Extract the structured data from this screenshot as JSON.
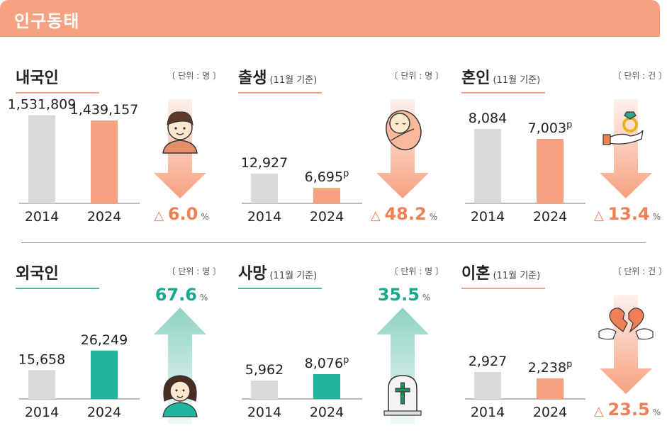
{
  "header": {
    "title": "인구동태"
  },
  "colors": {
    "header_bg": "#f6a17f",
    "bar_2014": "#d9d9d9",
    "bar_orange": "#f6a17f",
    "bar_teal": "#1fb59c",
    "pct_orange": "#ef7f55",
    "pct_teal": "#1aa98f",
    "underline_orange": "#f6a17f",
    "underline_teal": "#34c2a5",
    "arrow_orange": "#f6a17f",
    "arrow_teal": "#8fd3c3"
  },
  "panels": [
    {
      "id": "domestic",
      "title": "내국인",
      "subtitle": "",
      "unit": "〔 단위 : 명 〕",
      "accent": "orange",
      "direction": "down",
      "pct_prefix": "△",
      "pct_value": "6.0",
      "pct_suffix": "%",
      "icon": "person-icon"
    },
    {
      "id": "births",
      "title": "출생",
      "subtitle": "(11월 기준)",
      "unit": "〔 단위 : 명 〕",
      "accent": "orange",
      "direction": "down",
      "pct_prefix": "△",
      "pct_value": "48.2",
      "pct_suffix": "%",
      "icon": "baby-icon"
    },
    {
      "id": "marriages",
      "title": "혼인",
      "subtitle": "(11월 기준)",
      "unit": "〔 단위 : 건 〕",
      "accent": "orange",
      "direction": "down",
      "pct_prefix": "△",
      "pct_value": "13.4",
      "pct_suffix": "%",
      "icon": "ring-icon"
    },
    {
      "id": "foreigners",
      "title": "외국인",
      "subtitle": "",
      "unit": "〔 단위 : 명 〕",
      "accent": "teal",
      "direction": "up",
      "pct_prefix": "",
      "pct_value": "67.6",
      "pct_suffix": "%",
      "icon": "woman-icon"
    },
    {
      "id": "deaths",
      "title": "사망",
      "subtitle": "(11월 기준)",
      "unit": "〔 단위 : 명 〕",
      "accent": "teal",
      "direction": "up",
      "pct_prefix": "",
      "pct_value": "35.5",
      "pct_suffix": "%",
      "icon": "tombstone-icon"
    },
    {
      "id": "divorces",
      "title": "이혼",
      "subtitle": "(11월 기준)",
      "unit": "〔 단위 : 건 〕",
      "accent": "orange",
      "direction": "down",
      "pct_prefix": "△",
      "pct_value": "23.5",
      "pct_suffix": "%",
      "icon": "broken-heart-icon"
    }
  ],
  "chart_data": [
    {
      "type": "bar",
      "title": "내국인",
      "unit": "명",
      "categories": [
        "2014",
        "2024"
      ],
      "values": [
        1531809,
        1439157
      ],
      "value_labels": [
        "1,531,809",
        "1,439,157"
      ],
      "provisional": [
        false,
        false
      ],
      "ylim": [
        0,
        1600000
      ]
    },
    {
      "type": "bar",
      "title": "출생",
      "subtitle": "(11월 기준)",
      "unit": "명",
      "categories": [
        "2014",
        "2024"
      ],
      "values": [
        12927,
        6695
      ],
      "value_labels": [
        "12,927",
        "6,695"
      ],
      "provisional": [
        false,
        true
      ],
      "ylim": [
        0,
        40000
      ]
    },
    {
      "type": "bar",
      "title": "혼인",
      "subtitle": "(11월 기준)",
      "unit": "건",
      "categories": [
        "2014",
        "2024"
      ],
      "values": [
        8084,
        7003
      ],
      "value_labels": [
        "8,084",
        "7,003"
      ],
      "provisional": [
        false,
        true
      ],
      "ylim": [
        0,
        10000
      ]
    },
    {
      "type": "bar",
      "title": "외국인",
      "unit": "명",
      "categories": [
        "2014",
        "2024"
      ],
      "values": [
        15658,
        26249
      ],
      "value_labels": [
        "15,658",
        "26,249"
      ],
      "provisional": [
        false,
        false
      ],
      "ylim": [
        0,
        50000
      ]
    },
    {
      "type": "bar",
      "title": "사망",
      "subtitle": "(11월 기준)",
      "unit": "명",
      "categories": [
        "2014",
        "2024"
      ],
      "values": [
        5962,
        8076
      ],
      "value_labels": [
        "5,962",
        "8,076"
      ],
      "provisional": [
        false,
        true
      ],
      "ylim": [
        0,
        30000
      ]
    },
    {
      "type": "bar",
      "title": "이혼",
      "subtitle": "(11월 기준)",
      "unit": "건",
      "categories": [
        "2014",
        "2024"
      ],
      "values": [
        2927,
        2238
      ],
      "value_labels": [
        "2,927",
        "2,238"
      ],
      "provisional": [
        false,
        true
      ],
      "ylim": [
        0,
        10000
      ]
    }
  ],
  "provisional_mark": "p"
}
